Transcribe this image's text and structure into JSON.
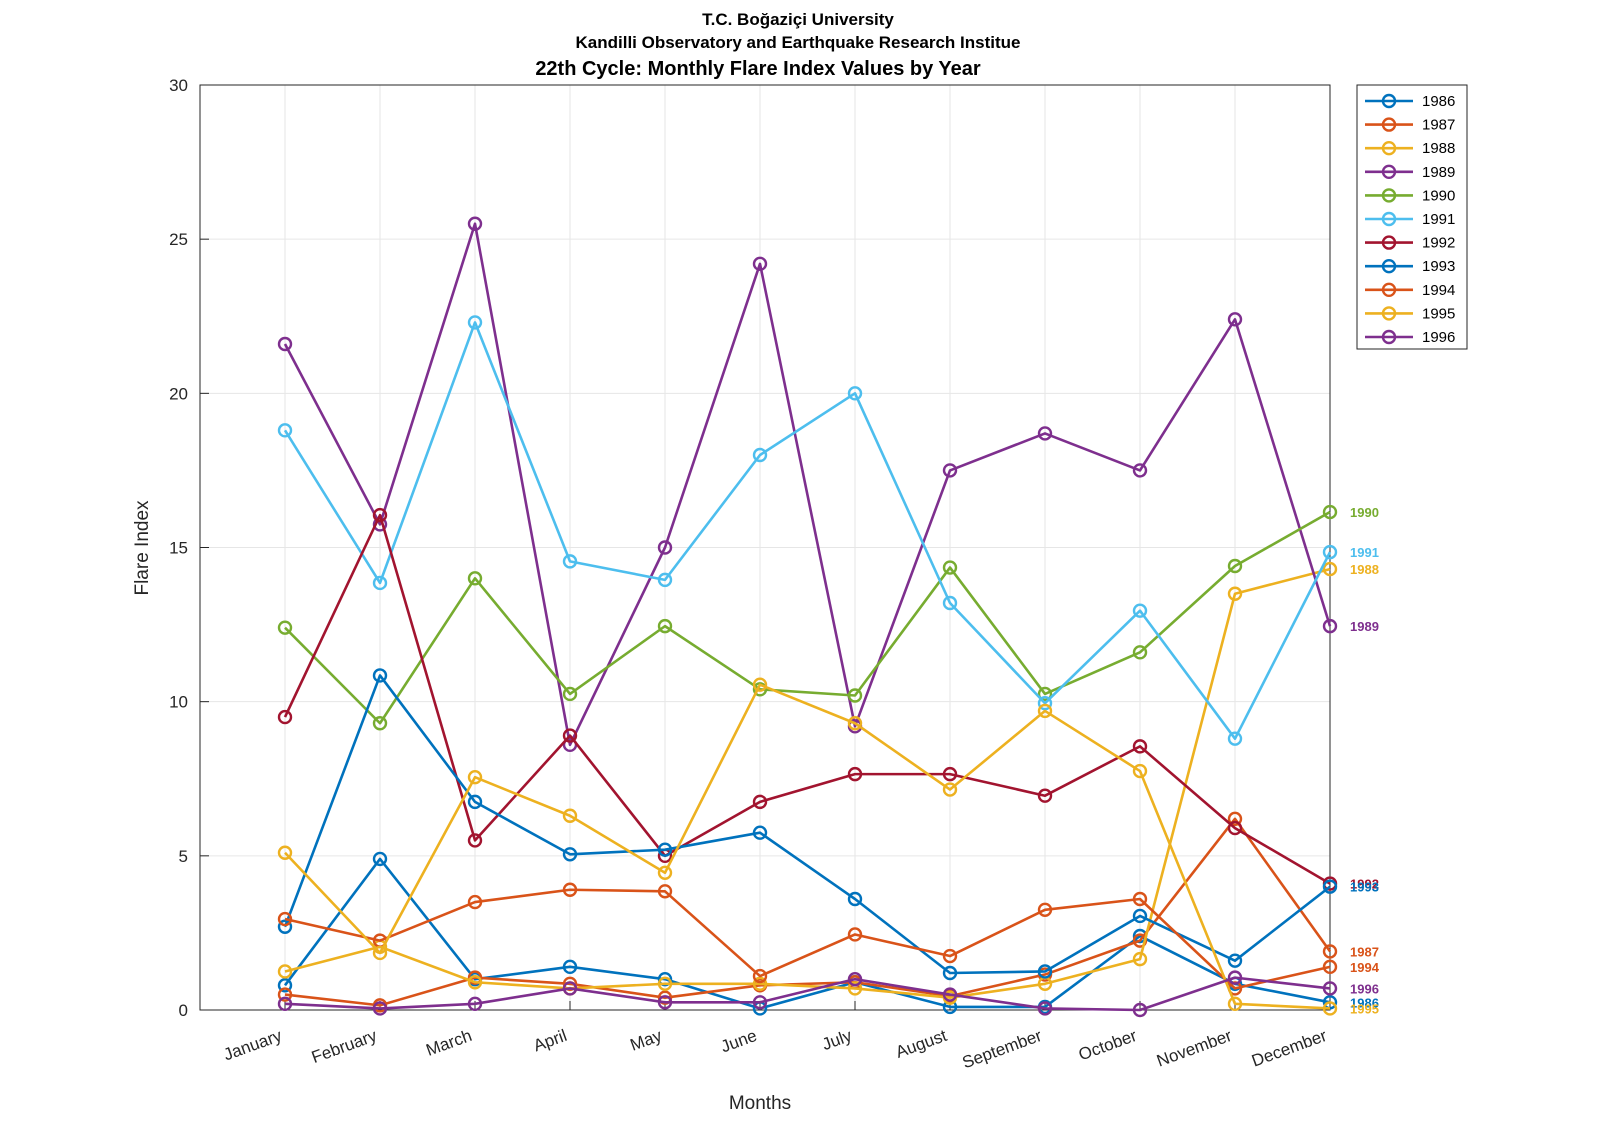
{
  "chart_data": {
    "type": "line",
    "title_lines": [
      "T.C. Boğaziçi University",
      "Kandilli Observatory and Earthquake Research Institue",
      "22th Cycle: Monthly Flare Index Values by Year"
    ],
    "xlabel": "Months",
    "ylabel": "Flare Index",
    "categories": [
      "January",
      "February",
      "March",
      "April",
      "May",
      "June",
      "July",
      "August",
      "September",
      "October",
      "November",
      "December"
    ],
    "ylim": [
      0,
      30
    ],
    "yticks": [
      0,
      5,
      10,
      15,
      20,
      25,
      30
    ],
    "grid": true,
    "legend": "top-right outside",
    "marker": "circle",
    "series": [
      {
        "name": "1986",
        "color": "#0072BD",
        "values": [
          0.8,
          4.9,
          1.0,
          1.4,
          1.0,
          0.05,
          0.9,
          0.1,
          0.1,
          2.4,
          0.85,
          0.25
        ]
      },
      {
        "name": "1987",
        "color": "#D95319",
        "values": [
          0.5,
          0.15,
          1.05,
          0.85,
          0.4,
          0.8,
          0.9,
          0.45,
          1.15,
          2.25,
          6.2,
          1.9
        ]
      },
      {
        "name": "1988",
        "color": "#EDB120",
        "values": [
          1.25,
          2.05,
          0.9,
          0.7,
          0.85,
          0.85,
          0.7,
          0.4,
          0.85,
          1.65,
          13.5,
          14.3
        ]
      },
      {
        "name": "1989",
        "color": "#7E2F8E",
        "values": [
          21.6,
          15.75,
          25.5,
          8.6,
          15.0,
          24.2,
          9.2,
          17.5,
          18.7,
          17.5,
          22.4,
          12.45
        ]
      },
      {
        "name": "1990",
        "color": "#77AC30",
        "values": [
          12.4,
          9.3,
          14.0,
          10.25,
          12.45,
          10.4,
          10.2,
          14.35,
          10.25,
          11.6,
          14.4,
          16.15
        ]
      },
      {
        "name": "1991",
        "color": "#4DBEEE",
        "values": [
          18.8,
          13.85,
          22.3,
          14.55,
          13.95,
          18.0,
          20.0,
          13.2,
          9.95,
          12.95,
          8.8,
          14.85
        ]
      },
      {
        "name": "1992",
        "color": "#A2142F",
        "values": [
          9.5,
          16.05,
          5.5,
          8.9,
          5.0,
          6.75,
          7.65,
          7.65,
          6.95,
          8.55,
          5.9,
          4.1
        ]
      },
      {
        "name": "1993",
        "color": "#0072BD",
        "values": [
          2.7,
          10.85,
          6.75,
          5.05,
          5.2,
          5.75,
          3.6,
          1.2,
          1.25,
          3.05,
          1.6,
          4.0
        ]
      },
      {
        "name": "1994",
        "color": "#D95319",
        "values": [
          2.95,
          2.25,
          3.5,
          3.9,
          3.85,
          1.1,
          2.45,
          1.75,
          3.25,
          3.6,
          0.7,
          1.4
        ]
      },
      {
        "name": "1995",
        "color": "#EDB120",
        "values": [
          5.1,
          1.85,
          7.55,
          6.3,
          4.45,
          10.55,
          9.3,
          7.15,
          9.7,
          7.75,
          0.2,
          0.05
        ]
      },
      {
        "name": "1996",
        "color": "#7E2F8E",
        "values": [
          0.2,
          0.05,
          0.2,
          0.7,
          0.25,
          0.25,
          1.0,
          0.5,
          0.05,
          0.0,
          1.05,
          0.7
        ]
      }
    ]
  }
}
